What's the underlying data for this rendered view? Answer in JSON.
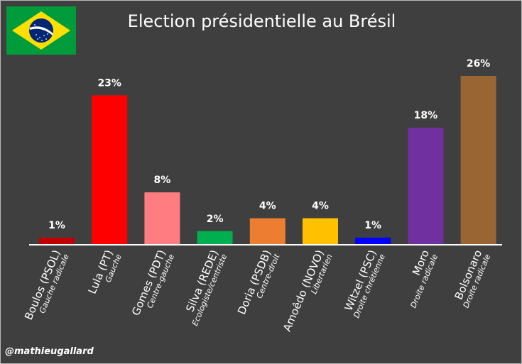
{
  "chart_data": {
    "type": "bar",
    "title": "Election présidentielle au Brésil",
    "categories": [
      "Boulos (PSOL)",
      "Lula (PT)",
      "Gomes (PDT)",
      "Silva (REDE)",
      "Doria (PSDB)",
      "Amoêdo (NOVO)",
      "Witzel (PSC)",
      "Moro",
      "Bolsonaro"
    ],
    "subcategories": [
      "Gauche radicale",
      "Gauche",
      "Centre-gauche",
      "Ecologiste/centriste",
      "Centre-droit",
      "Libertarien",
      "Droite chrétienne",
      "Droite radicale",
      "Droite radicale"
    ],
    "values": [
      1,
      23,
      8,
      2,
      4,
      4,
      1,
      18,
      26
    ],
    "value_labels": [
      "1%",
      "23%",
      "8%",
      "2%",
      "4%",
      "4%",
      "1%",
      "18%",
      "26%"
    ],
    "colors": [
      "#c00000",
      "#ff0000",
      "#ff7c80",
      "#00b050",
      "#ed7d31",
      "#ffc000",
      "#0000ff",
      "#7030a0",
      "#996633"
    ],
    "ylim": [
      0,
      26
    ],
    "xlabel": "",
    "ylabel": "",
    "grid": false,
    "legend": "none"
  },
  "credit": "@mathieugallard",
  "flag": {
    "name": "Brazil flag",
    "green": "#009c3b",
    "yellow": "#ffdf00",
    "blue": "#002776"
  }
}
